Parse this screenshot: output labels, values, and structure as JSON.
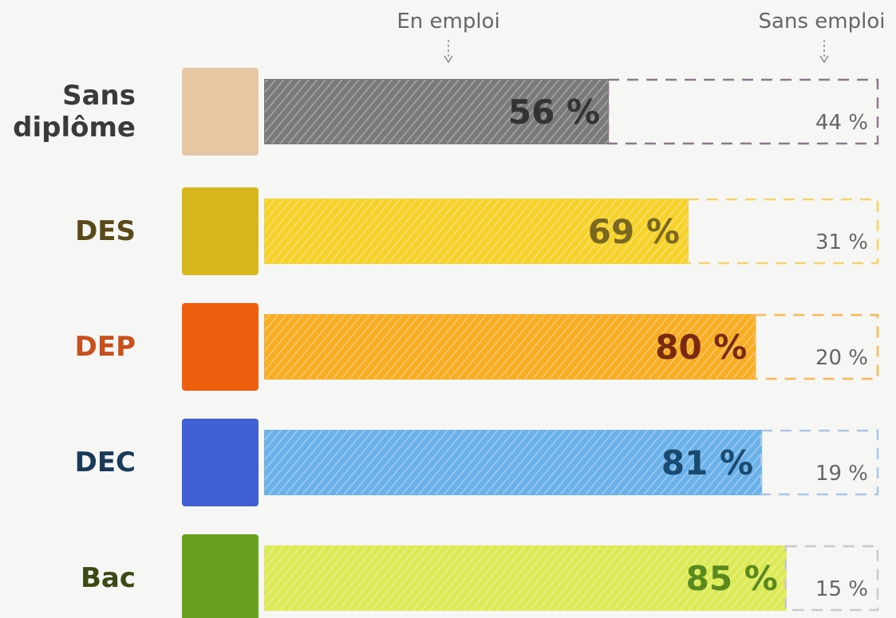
{
  "chart_data": {
    "type": "stacked-bar",
    "categories": [
      "Sans diplôme",
      "DES",
      "DEP",
      "DEC",
      "Bac"
    ],
    "category_colors": [
      "#3a3a3a",
      "#5a4a1a",
      "#c8501e",
      "#1a3a5a",
      "#3b4a14"
    ],
    "block_colors": [
      "#e6c7a4",
      "#d8b61e",
      "#ee5f10",
      "#3f5fd2",
      "#6aa020"
    ],
    "xlim": [
      0,
      100
    ],
    "series": [
      {
        "name": "En emploi",
        "values": [
          56,
          69,
          80,
          81,
          85
        ],
        "value_labels": [
          "56 %",
          "69 %",
          "80 %",
          "81 %",
          "85 %"
        ],
        "colors": [
          "#7a7a7a",
          "#f6d22a",
          "#f8ad24",
          "#6cb2ea",
          "#dbea55"
        ],
        "label_colors": [
          "#333333",
          "#7a6820",
          "#7a2a10",
          "#1a4a70",
          "#5a8a1e"
        ]
      },
      {
        "name": "Sans emploi",
        "values": [
          44,
          31,
          20,
          19,
          15
        ],
        "value_labels": [
          "44 %",
          "31 %",
          "20 %",
          "19 %",
          "15 %"
        ],
        "colors": [
          "#8a7a8a",
          "#f3d36a",
          "#f5b85a",
          "#a9c6e6",
          "#c9c9c9"
        ]
      }
    ]
  }
}
